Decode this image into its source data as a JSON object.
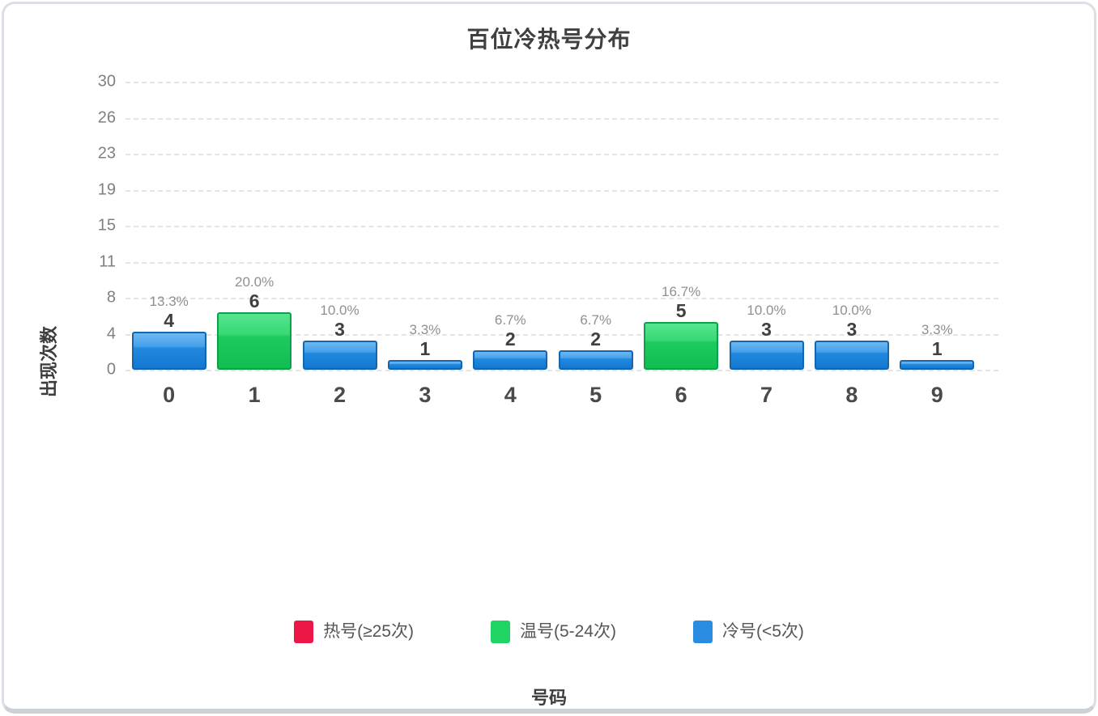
{
  "chart_data": {
    "type": "bar",
    "title": "百位冷热号分布",
    "xlabel": "号码",
    "ylabel": "出现次数",
    "categories": [
      "0",
      "1",
      "2",
      "3",
      "4",
      "5",
      "6",
      "7",
      "8",
      "9"
    ],
    "values": [
      4,
      6,
      3,
      1,
      2,
      2,
      5,
      3,
      3,
      1
    ],
    "percent_labels": [
      "13.3%",
      "20.0%",
      "10.0%",
      "3.3%",
      "6.7%",
      "6.7%",
      "16.7%",
      "10.0%",
      "10.0%",
      "3.3%"
    ],
    "bar_groups": [
      "cold",
      "warm",
      "cold",
      "cold",
      "cold",
      "cold",
      "warm",
      "cold",
      "cold",
      "cold"
    ],
    "y_ticks": [
      30,
      26,
      23,
      19,
      15,
      11,
      8,
      4,
      0
    ],
    "ylim": [
      0,
      30
    ],
    "grid": "dashed-horizontal",
    "legend_position": "bottom",
    "legend": [
      {
        "key": "hot",
        "label": "热号(≥25次)",
        "color": "#ec1747"
      },
      {
        "key": "warm",
        "label": "温号(5-24次)",
        "color": "#1fd463"
      },
      {
        "key": "cold",
        "label": "冷号(<5次)",
        "color": "#2a8ce0"
      }
    ],
    "colors": {
      "hot": "#ec1747",
      "warm": "#1fd463",
      "cold": "#2a8ce0"
    }
  }
}
